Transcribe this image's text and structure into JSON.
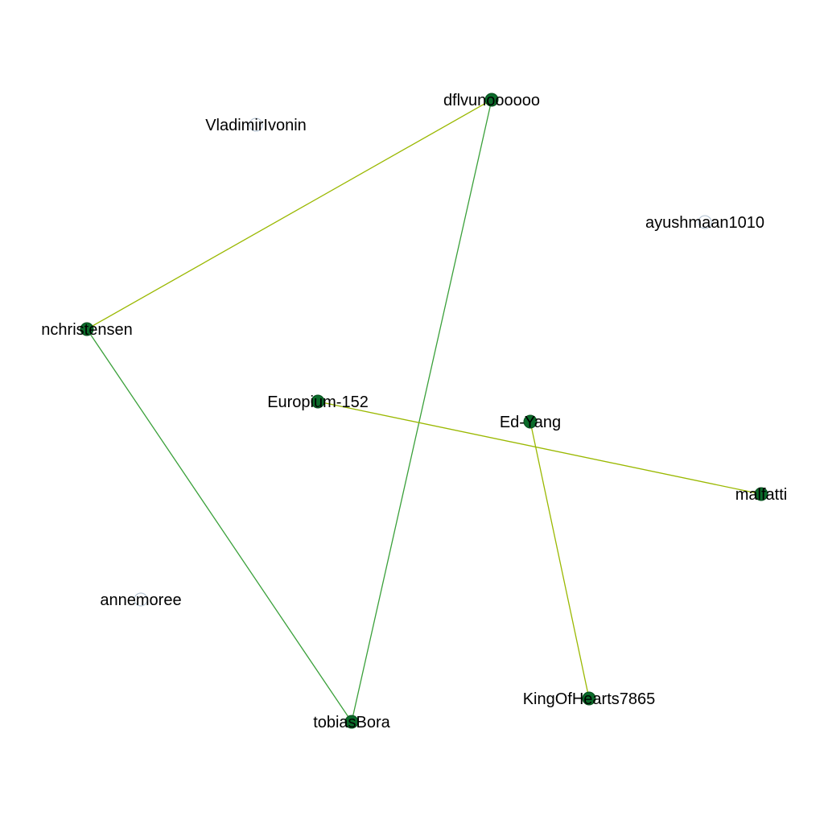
{
  "graph": {
    "nodes": [
      {
        "id": "dflvunoooooo",
        "label": "dflvunoooooo",
        "connected": true
      },
      {
        "id": "VladimirIvonin",
        "label": "VladimirIvonin",
        "connected": false
      },
      {
        "id": "ayushmaan1010",
        "label": "ayushmaan1010",
        "connected": false
      },
      {
        "id": "nchristensen",
        "label": "nchristensen",
        "connected": true
      },
      {
        "id": "Europium-152",
        "label": "Europium-152",
        "connected": true
      },
      {
        "id": "Ed-Yang",
        "label": "Ed-Yang",
        "connected": true
      },
      {
        "id": "malfatti",
        "label": "malfatti",
        "connected": true
      },
      {
        "id": "annemoree",
        "label": "annemoree",
        "connected": false
      },
      {
        "id": "KingOfHearts7865",
        "label": "KingOfHearts7865",
        "connected": true
      },
      {
        "id": "tobiasBora",
        "label": "tobiasBora",
        "connected": true
      }
    ],
    "edges": [
      {
        "source": "dflvunoooooo",
        "target": "nchristensen",
        "color": "#9ab800"
      },
      {
        "source": "dflvunoooooo",
        "target": "tobiasBora",
        "color": "#3aa03a"
      },
      {
        "source": "nchristensen",
        "target": "tobiasBora",
        "color": "#3aa03a"
      },
      {
        "source": "Europium-152",
        "target": "malfatti",
        "color": "#9ab800"
      },
      {
        "source": "Ed-Yang",
        "target": "KingOfHearts7865",
        "color": "#9ab800"
      }
    ],
    "colors": {
      "node_fill": "#0b6b2a",
      "node_stroke": "#064d1c",
      "isolated_stroke": "#aebfcf",
      "label": "#000000",
      "background": "#ffffff"
    }
  }
}
